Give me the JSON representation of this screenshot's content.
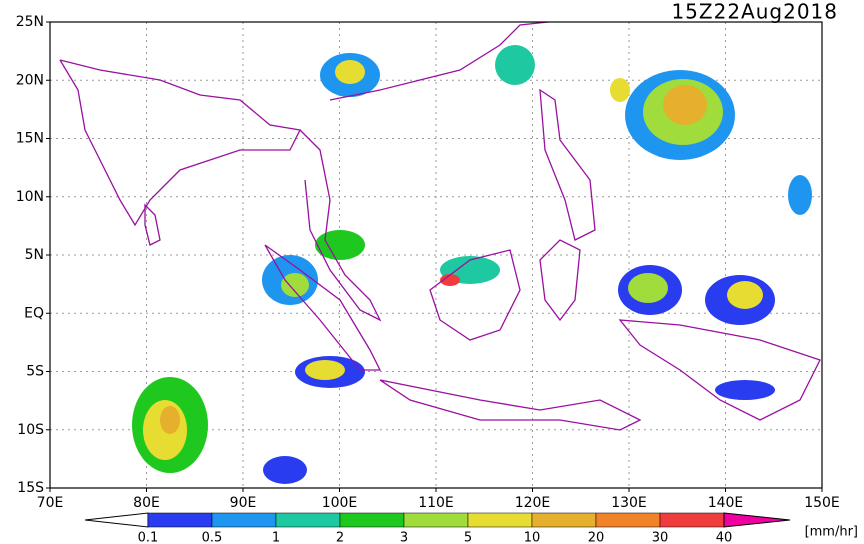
{
  "title": "15Z22Aug2018",
  "lat_labels": [
    "25N",
    "20N",
    "15N",
    "10N",
    "5N",
    "EQ",
    "5S",
    "10S",
    "15S"
  ],
  "lon_labels": [
    "70E",
    "80E",
    "90E",
    "100E",
    "110E",
    "120E",
    "130E",
    "140E",
    "150E"
  ],
  "colorbar": {
    "labels": [
      "0.1",
      "0.5",
      "1",
      "2",
      "3",
      "5",
      "10",
      "20",
      "30",
      "40"
    ],
    "colors": [
      "#ffffff",
      "#2a3cf0",
      "#1e96f0",
      "#1ec8a0",
      "#1ec81e",
      "#a0dc3c",
      "#e6dc32",
      "#e6af2d",
      "#f08228",
      "#f03c3c",
      "#f000a0"
    ],
    "unit": "[mm/hr]"
  }
}
